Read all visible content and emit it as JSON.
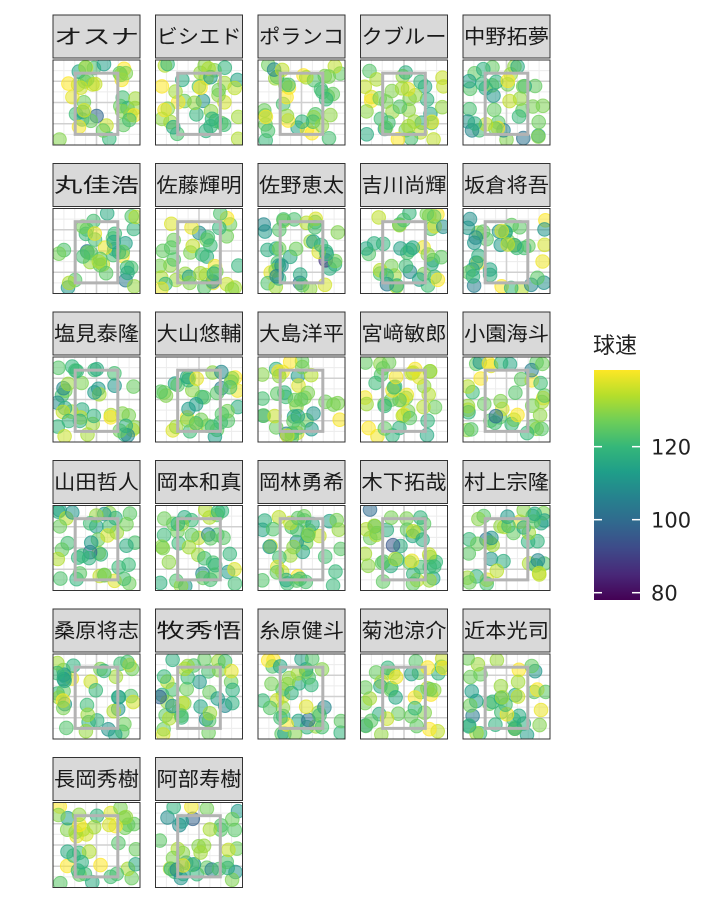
{
  "chart_data": {
    "type": "scatter",
    "title": "",
    "xlabel": "",
    "ylabel": "",
    "grid": true,
    "facet_columns": 5,
    "marker_opacity": 0.55,
    "colors": {
      "strike_zone": "#b3b3b3",
      "strip_fill": "#d9d9d9",
      "strip_border": "#333333",
      "grid_major": "#d0d0d0",
      "grid_minor": "#ececec",
      "viridis": [
        "#440154",
        "#482878",
        "#3e4a89",
        "#31688e",
        "#26828e",
        "#1f9e89",
        "#35b779",
        "#6ece58",
        "#b5de2b",
        "#fde725"
      ]
    },
    "color_scale": {
      "title": "球速",
      "min": 78,
      "max": 141,
      "ticks": [
        80,
        100,
        120
      ],
      "tick_labels": [
        "80",
        "100",
        "120"
      ]
    },
    "facets": [
      {
        "name": "オスナ",
        "n": 40,
        "mean_speed": 128
      },
      {
        "name": "ビシエド",
        "n": 40,
        "mean_speed": 126
      },
      {
        "name": "ポランコ",
        "n": 40,
        "mean_speed": 125
      },
      {
        "name": "クブルー",
        "n": 40,
        "mean_speed": 127
      },
      {
        "name": "中野拓夢",
        "n": 40,
        "mean_speed": 123
      },
      {
        "name": "丸佳浩",
        "n": 40,
        "mean_speed": 122
      },
      {
        "name": "佐藤輝明",
        "n": 40,
        "mean_speed": 124
      },
      {
        "name": "佐野恵太",
        "n": 40,
        "mean_speed": 121
      },
      {
        "name": "吉川尚輝",
        "n": 40,
        "mean_speed": 123
      },
      {
        "name": "坂倉将吾",
        "n": 40,
        "mean_speed": 122
      },
      {
        "name": "塩見泰隆",
        "n": 40,
        "mean_speed": 121
      },
      {
        "name": "大山悠輔",
        "n": 40,
        "mean_speed": 124
      },
      {
        "name": "大島洋平",
        "n": 40,
        "mean_speed": 126
      },
      {
        "name": "宮﨑敏郎",
        "n": 40,
        "mean_speed": 127
      },
      {
        "name": "小園海斗",
        "n": 40,
        "mean_speed": 125
      },
      {
        "name": "山田哲人",
        "n": 40,
        "mean_speed": 123
      },
      {
        "name": "岡本和真",
        "n": 40,
        "mean_speed": 122
      },
      {
        "name": "岡林勇希",
        "n": 40,
        "mean_speed": 124
      },
      {
        "name": "木下拓哉",
        "n": 40,
        "mean_speed": 124
      },
      {
        "name": "村上宗隆",
        "n": 40,
        "mean_speed": 125
      },
      {
        "name": "桑原将志",
        "n": 40,
        "mean_speed": 122
      },
      {
        "name": "牧秀悟",
        "n": 40,
        "mean_speed": 124
      },
      {
        "name": "糸原健斗",
        "n": 40,
        "mean_speed": 126
      },
      {
        "name": "菊池涼介",
        "n": 40,
        "mean_speed": 127
      },
      {
        "name": "近本光司",
        "n": 40,
        "mean_speed": 123
      },
      {
        "name": "長岡秀樹",
        "n": 40,
        "mean_speed": 124
      },
      {
        "name": "阿部寿樹",
        "n": 40,
        "mean_speed": 123
      }
    ]
  }
}
